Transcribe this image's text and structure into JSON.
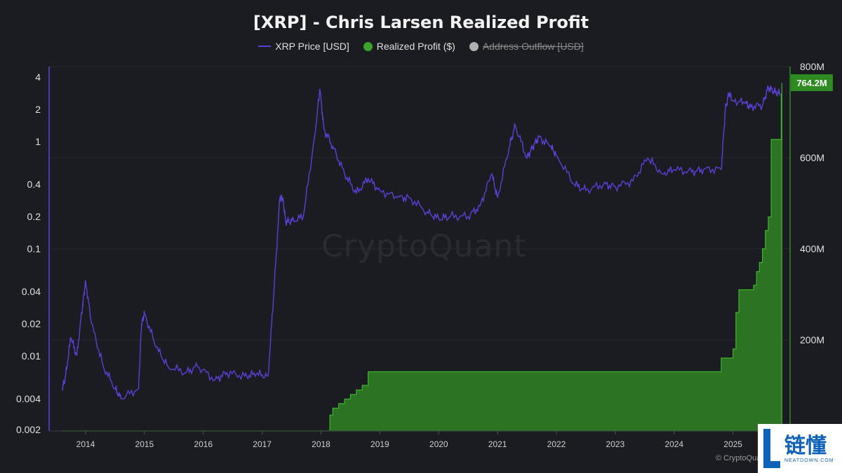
{
  "title": "[XRP] - Chris Larsen Realized Profit",
  "legend": [
    {
      "label": "XRP Price [USD]",
      "type": "line",
      "color": "#5b3fd6",
      "visible": true
    },
    {
      "label": "Realized Profit ($)",
      "type": "dot",
      "color": "#3aa32a",
      "visible": true
    },
    {
      "label": "Address Outflow [USD]",
      "type": "dot",
      "color": "#b0b0b0",
      "visible": false
    }
  ],
  "watermark": "CryptoQuant",
  "credit": "© CryptoQuant",
  "logo": {
    "cn": "链懂",
    "en": "NEATDOWN.COM"
  },
  "callout_label": "764.2M",
  "chart_data": {
    "type": "line",
    "x_axis": {
      "type": "time",
      "ticks": [
        "2014",
        "2015",
        "2016",
        "2017",
        "2018",
        "2019",
        "2020",
        "2021",
        "2022",
        "2023",
        "2024",
        "2025"
      ],
      "range": [
        2013.38,
        2025.97
      ]
    },
    "y_left": {
      "label": "",
      "scale": "log",
      "ticks": [
        "4",
        "2",
        "1",
        "0.4",
        "0.2",
        "0.1",
        "0.04",
        "0.02",
        "0.01",
        "0.004",
        "0.002"
      ],
      "range": [
        0.002,
        5
      ]
    },
    "y_right": {
      "label": "",
      "scale": "linear",
      "ticks": [
        "800M",
        "600M",
        "400M",
        "200M"
      ],
      "range": [
        0,
        800
      ]
    },
    "grid": true,
    "legend_position": "top-center",
    "series": [
      {
        "name": "XRP Price [USD]",
        "color": "#5b3fd6",
        "axis": "left",
        "x": [
          2013.6,
          2013.65,
          2013.75,
          2013.85,
          2013.95,
          2014.0,
          2014.1,
          2014.3,
          2014.5,
          2014.6,
          2014.9,
          2014.95,
          2015.0,
          2015.2,
          2015.4,
          2015.7,
          2015.9,
          2016.2,
          2016.4,
          2016.7,
          2016.9,
          2017.1,
          2017.2,
          2017.3,
          2017.35,
          2017.4,
          2017.5,
          2017.7,
          2017.9,
          2017.98,
          2018.05,
          2018.2,
          2018.4,
          2018.6,
          2018.8,
          2019.0,
          2019.3,
          2019.5,
          2019.8,
          2020.0,
          2020.2,
          2020.5,
          2020.7,
          2020.9,
          2021.0,
          2021.2,
          2021.3,
          2021.5,
          2021.6,
          2021.7,
          2021.9,
          2022.0,
          2022.3,
          2022.5,
          2022.8,
          2023.0,
          2023.3,
          2023.55,
          2023.8,
          2024.0,
          2024.3,
          2024.5,
          2024.8,
          2024.87,
          2024.93,
          2025.0,
          2025.2,
          2025.3,
          2025.5,
          2025.6,
          2025.7,
          2025.8
        ],
        "values": [
          0.005,
          0.006,
          0.015,
          0.01,
          0.03,
          0.05,
          0.02,
          0.008,
          0.005,
          0.004,
          0.005,
          0.02,
          0.025,
          0.012,
          0.008,
          0.007,
          0.008,
          0.006,
          0.007,
          0.0065,
          0.0068,
          0.0065,
          0.04,
          0.3,
          0.3,
          0.18,
          0.18,
          0.2,
          1.2,
          3.1,
          1.3,
          0.9,
          0.5,
          0.33,
          0.45,
          0.35,
          0.3,
          0.3,
          0.22,
          0.19,
          0.2,
          0.2,
          0.25,
          0.5,
          0.3,
          0.9,
          1.4,
          0.7,
          0.9,
          1.1,
          0.9,
          0.75,
          0.4,
          0.35,
          0.4,
          0.38,
          0.43,
          0.7,
          0.5,
          0.55,
          0.52,
          0.55,
          0.55,
          2.0,
          2.8,
          2.4,
          2.3,
          2.1,
          2.2,
          3.2,
          2.9,
          2.8
        ]
      },
      {
        "name": "Realized Profit ($)",
        "color": "#2f7d23",
        "axis": "right",
        "style": "step-area",
        "x": [
          2013.6,
          2018.1,
          2018.15,
          2018.2,
          2018.3,
          2018.4,
          2018.5,
          2018.6,
          2018.7,
          2018.8,
          2024.7,
          2024.8,
          2025.0,
          2025.05,
          2025.1,
          2025.2,
          2025.3,
          2025.35,
          2025.4,
          2025.45,
          2025.5,
          2025.55,
          2025.6,
          2025.65,
          2025.8,
          2025.82,
          2025.83
        ],
        "values": [
          0,
          0,
          35,
          50,
          60,
          70,
          80,
          90,
          100,
          130,
          130,
          160,
          180,
          260,
          310,
          310,
          310,
          320,
          350,
          370,
          400,
          440,
          470,
          640,
          640,
          740,
          764.2
        ]
      }
    ]
  }
}
